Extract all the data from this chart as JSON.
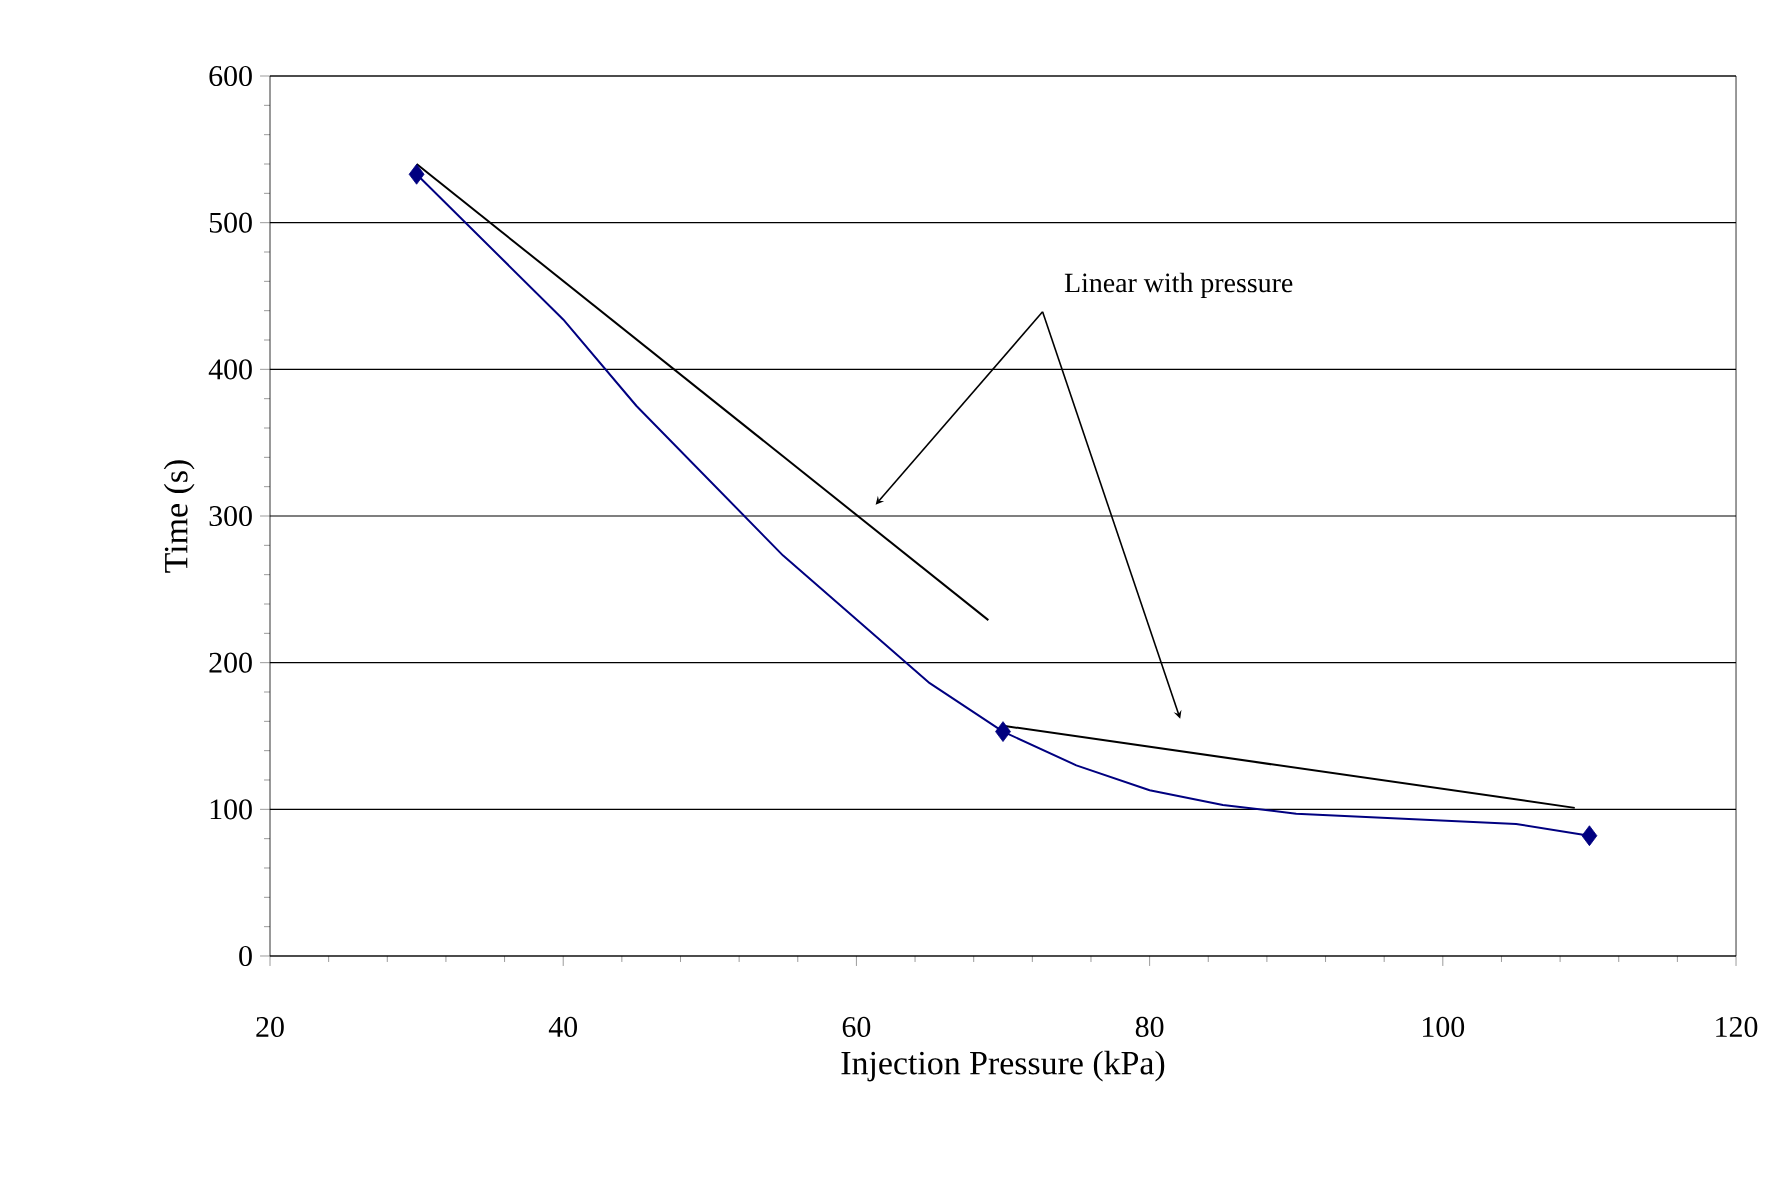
{
  "chart_data": {
    "type": "line",
    "xlabel": "Injection Pressure (kPa)",
    "ylabel": "Time (s)",
    "xlim": [
      20,
      120
    ],
    "xticks": [
      20,
      40,
      60,
      80,
      100,
      120
    ],
    "ylim": [
      0,
      600
    ],
    "yticks": [
      0,
      100,
      200,
      300,
      400,
      500,
      600
    ],
    "grid": "y",
    "annotations": [
      "Linear with pressure"
    ],
    "series": [
      {
        "color": "#000080",
        "marker": "none",
        "x": [
          30,
          40,
          45,
          55,
          65,
          70,
          75,
          80,
          85,
          90,
          105,
          110
        ],
        "values": [
          533,
          434,
          375,
          273,
          186,
          153,
          130,
          113,
          103,
          97,
          90,
          82
        ]
      },
      {
        "type": "scatter",
        "color": "#000080",
        "marker": "diamond",
        "x": [
          30,
          70,
          110
        ],
        "values": [
          533,
          153,
          82
        ]
      },
      {
        "color": "#000000",
        "marker": "none",
        "x": [
          30,
          69
        ],
        "values": [
          540,
          229
        ]
      },
      {
        "color": "#000000",
        "marker": "none",
        "x": [
          70,
          109
        ],
        "values": [
          157,
          101
        ]
      }
    ]
  }
}
